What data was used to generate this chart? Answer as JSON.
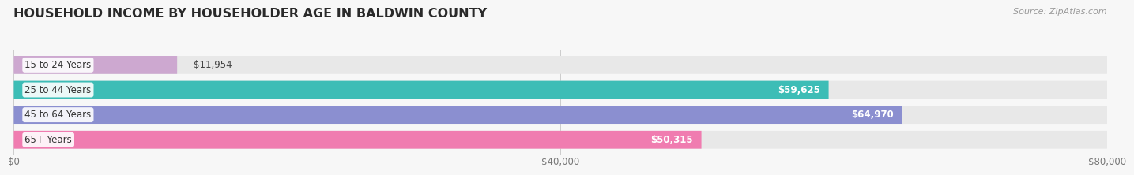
{
  "title": "HOUSEHOLD INCOME BY HOUSEHOLDER AGE IN BALDWIN COUNTY",
  "source": "Source: ZipAtlas.com",
  "categories": [
    "15 to 24 Years",
    "25 to 44 Years",
    "45 to 64 Years",
    "65+ Years"
  ],
  "values": [
    11954,
    59625,
    64970,
    50315
  ],
  "bar_colors": [
    "#cda8d0",
    "#3dbdb6",
    "#8b8fd0",
    "#f07cb0"
  ],
  "bar_bg_color": "#e8e8e8",
  "value_labels": [
    "$11,954",
    "$59,625",
    "$64,970",
    "$50,315"
  ],
  "value_label_colors": [
    "#444444",
    "#ffffff",
    "#ffffff",
    "#ffffff"
  ],
  "value_label_inside": [
    false,
    true,
    true,
    true
  ],
  "x_ticks": [
    0,
    40000,
    80000
  ],
  "x_tick_labels": [
    "$0",
    "$40,000",
    "$80,000"
  ],
  "xlim": [
    0,
    80000
  ],
  "background_color": "#f7f7f7",
  "title_fontsize": 11.5,
  "label_fontsize": 8.5,
  "value_fontsize": 8.5,
  "source_fontsize": 8,
  "bar_height": 0.72,
  "bar_gap": 0.28
}
